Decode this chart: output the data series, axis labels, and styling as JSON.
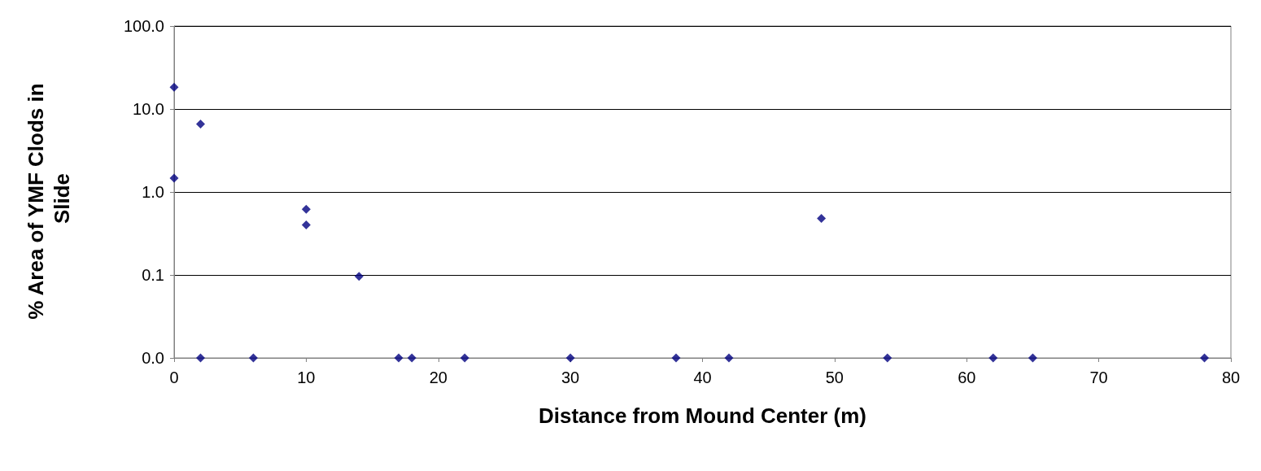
{
  "chart_data": {
    "type": "scatter",
    "xlabel": "Distance from Mound Center (m)",
    "ylabel": "% Area of YMF Clods in Slide",
    "x": [
      0,
      0,
      2,
      2,
      6,
      10,
      10,
      14,
      17,
      18,
      22,
      30,
      38,
      42,
      49,
      54,
      62,
      65,
      78
    ],
    "values": [
      18.3,
      1.47,
      6.6,
      0.01,
      0.01,
      0.62,
      0.4,
      0.096,
      0.01,
      0.01,
      0.01,
      0.01,
      0.01,
      0.01,
      0.48,
      0.01,
      0.01,
      0.01,
      0.01
    ],
    "color": "#000080",
    "marker": "diamond",
    "log": "y",
    "grid": "y",
    "xlim": [
      0,
      80
    ],
    "xticks": [
      0,
      10,
      20,
      30,
      40,
      50,
      60,
      70,
      80
    ],
    "ylim": [
      0.01,
      100
    ],
    "yticks": [
      {
        "value": 0.01,
        "label": "0.0"
      },
      {
        "value": 0.1,
        "label": "0.1"
      },
      {
        "value": 1,
        "label": "1.0"
      },
      {
        "value": 10,
        "label": "10.0"
      },
      {
        "value": 100,
        "label": "100.0"
      }
    ]
  }
}
